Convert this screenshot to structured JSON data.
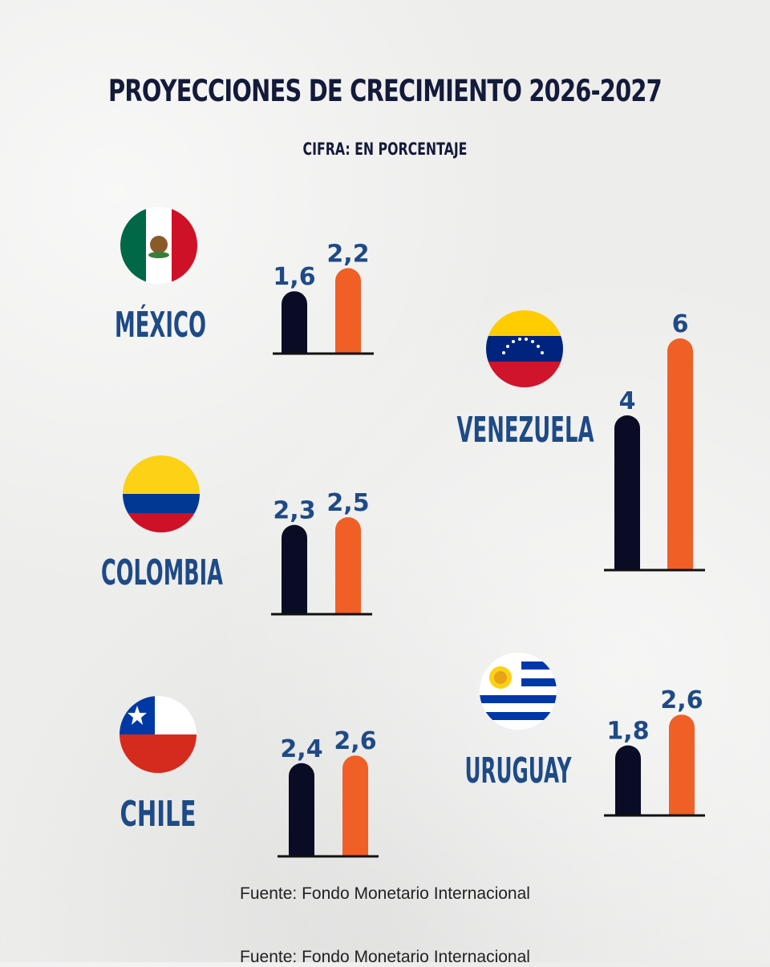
{
  "colors": {
    "background": "#ededec",
    "bar_2026": "#0a0c26",
    "bar_2027": "#f05f26",
    "label": "#1e4a86",
    "title": "#141a3a"
  },
  "footer": {
    "source": "Fuente: Fondo Monetario Internacional"
  },
  "chart_data": {
    "type": "bar",
    "title": "PROYECCIONES DE CRECIMIENTO 2026-2027",
    "subtitle": "CIFRA: EN PORCENTAJE",
    "categories": [
      "MÉXICO",
      "VENEZUELA",
      "COLOMBIA",
      "URUGUAY",
      "CHILE"
    ],
    "series": [
      {
        "values": [
          1.6,
          4,
          2.3,
          1.8,
          2.4
        ],
        "labels": [
          "1,6",
          "4",
          "2,3",
          "1,8",
          "2,4"
        ]
      },
      {
        "values": [
          2.2,
          6,
          2.5,
          2.6,
          2.6
        ],
        "labels": [
          "2,2",
          "6",
          "2,5",
          "2,6",
          "2,6"
        ]
      }
    ],
    "flags": [
      "mexico-flag-icon",
      "venezuela-flag-icon",
      "colombia-flag-icon",
      "uruguay-flag-icon",
      "chile-flag-icon"
    ],
    "legend": "none",
    "grid": false
  }
}
